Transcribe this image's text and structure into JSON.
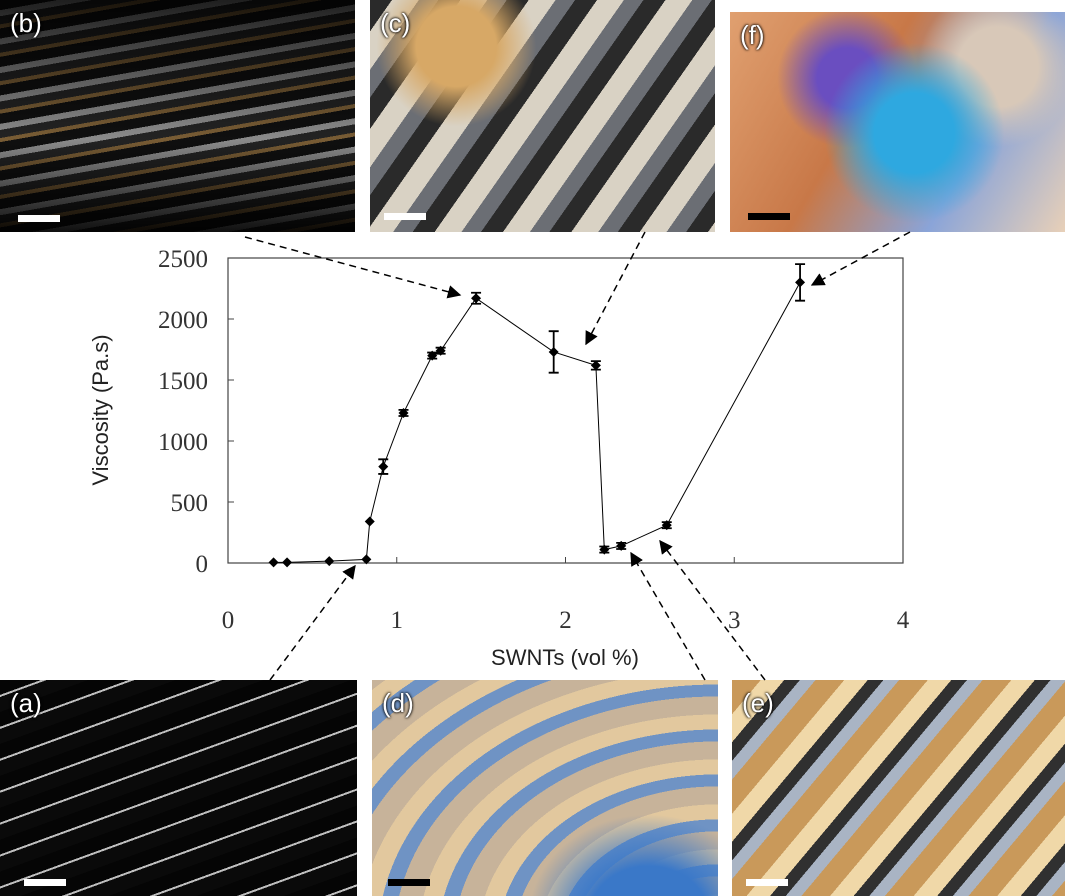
{
  "chart_data": {
    "type": "scatter",
    "x_label": "SWNTs (vol %)",
    "y_label": "Viscosity (Pa.s)",
    "x": [
      0.27,
      0.35,
      0.6,
      0.82,
      0.84,
      0.92,
      1.04,
      1.21,
      1.26,
      1.47,
      1.93,
      2.18,
      2.23,
      2.33,
      2.6,
      3.39
    ],
    "values": [
      5,
      5,
      15,
      30,
      340,
      790,
      1230,
      1700,
      1740,
      2170,
      1730,
      1620,
      110,
      140,
      310,
      2300
    ],
    "errors": [
      null,
      null,
      null,
      null,
      null,
      60,
      25,
      25,
      25,
      45,
      170,
      35,
      25,
      25,
      25,
      150
    ],
    "color": "#000000",
    "connect": true,
    "xlim": [
      0,
      4
    ],
    "xticks": [
      0,
      1,
      2,
      3,
      4
    ],
    "ylim": [
      0,
      2500
    ],
    "yticks": [
      0,
      500,
      1000,
      1500,
      2000,
      2500
    ]
  },
  "panels": [
    {
      "label": "(b)"
    },
    {
      "label": "(c)"
    },
    {
      "label": "(f)"
    },
    {
      "label": "(a)"
    },
    {
      "label": "(d)"
    },
    {
      "label": "(e)"
    }
  ]
}
